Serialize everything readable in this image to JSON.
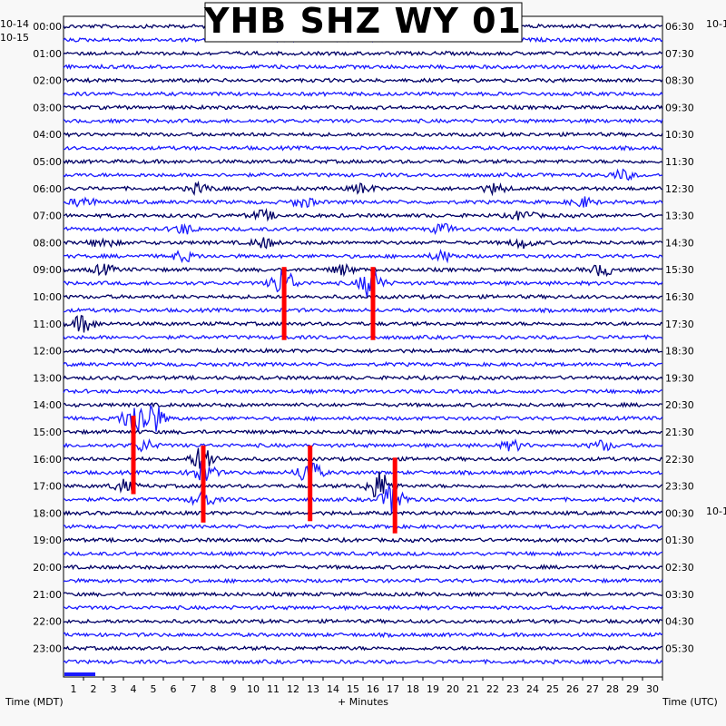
{
  "chart_data": {
    "type": "helicorder",
    "title": "YHB SHZ WY 01",
    "date_left_top": "10-14",
    "date_left_start": "10-15",
    "date_right_top": "10-1",
    "date_right_mid": "10-1",
    "xlabel": "+ Minutes",
    "left_axis_title": "Time (MDT)",
    "right_axis_title": "Time (UTC)",
    "xlim": [
      0,
      30
    ],
    "x_ticks": [
      1,
      2,
      3,
      4,
      5,
      6,
      7,
      8,
      9,
      10,
      11,
      12,
      13,
      14,
      15,
      16,
      17,
      18,
      19,
      20,
      21,
      22,
      23,
      24,
      25,
      26,
      27,
      28,
      29,
      30
    ],
    "left_hour_labels": [
      "00:00",
      "01:00",
      "02:00",
      "03:00",
      "04:00",
      "05:00",
      "06:00",
      "07:00",
      "08:00",
      "09:00",
      "10:00",
      "11:00",
      "12:00",
      "13:00",
      "14:00",
      "15:00",
      "16:00",
      "17:00",
      "18:00",
      "19:00",
      "20:00",
      "21:00",
      "22:00",
      "23:00"
    ],
    "right_hour_labels": [
      "06:30",
      "07:30",
      "08:30",
      "09:30",
      "10:30",
      "11:30",
      "12:30",
      "13:30",
      "14:30",
      "15:30",
      "16:30",
      "17:30",
      "18:30",
      "19:30",
      "20:30",
      "21:30",
      "22:30",
      "23:30",
      "00:30",
      "01:30",
      "02:30",
      "03:30",
      "04:30",
      "05:30"
    ],
    "trace_rows": 48,
    "trace_colors": [
      "#000066",
      "#1a1aff"
    ],
    "pick_color": "#ff0000",
    "blobs": [
      {
        "row": 12,
        "minute": 6.8,
        "amp": 5
      },
      {
        "row": 12,
        "minute": 15.0,
        "amp": 5
      },
      {
        "row": 12,
        "minute": 21.6,
        "amp": 5
      },
      {
        "row": 13,
        "minute": 1.0,
        "amp": 5
      },
      {
        "row": 13,
        "minute": 12.0,
        "amp": 5
      },
      {
        "row": 13,
        "minute": 26.0,
        "amp": 5
      },
      {
        "row": 11,
        "minute": 28.0,
        "amp": 5
      },
      {
        "row": 14,
        "minute": 10.0,
        "amp": 5
      },
      {
        "row": 14,
        "minute": 23.0,
        "amp": 5
      },
      {
        "row": 15,
        "minute": 6.0,
        "amp": 5
      },
      {
        "row": 15,
        "minute": 19.0,
        "amp": 5
      },
      {
        "row": 16,
        "minute": 2.0,
        "amp": 5
      },
      {
        "row": 16,
        "minute": 10.0,
        "amp": 5
      },
      {
        "row": 16,
        "minute": 23.0,
        "amp": 5
      },
      {
        "row": 17,
        "minute": 6.0,
        "amp": 5
      },
      {
        "row": 17,
        "minute": 19.0,
        "amp": 5
      },
      {
        "row": 18,
        "minute": 2.0,
        "amp": 5
      },
      {
        "row": 18,
        "minute": 14.0,
        "amp": 5
      },
      {
        "row": 18,
        "minute": 27.0,
        "amp": 6
      },
      {
        "row": 19,
        "minute": 11.0,
        "amp": 16
      },
      {
        "row": 19,
        "minute": 15.4,
        "amp": 16
      },
      {
        "row": 22,
        "minute": 1.0,
        "amp": 9
      },
      {
        "row": 29,
        "minute": 3.5,
        "amp": 16
      },
      {
        "row": 29,
        "minute": 4.4,
        "amp": 18
      },
      {
        "row": 31,
        "minute": 4.0,
        "amp": 6
      },
      {
        "row": 31,
        "minute": 22.5,
        "amp": 5
      },
      {
        "row": 31,
        "minute": 27.0,
        "amp": 5
      },
      {
        "row": 32,
        "minute": 7.0,
        "amp": 14
      },
      {
        "row": 33,
        "minute": 12.3,
        "amp": 14
      },
      {
        "row": 33,
        "minute": 7.0,
        "amp": 12
      },
      {
        "row": 34,
        "minute": 15.8,
        "amp": 16
      },
      {
        "row": 34,
        "minute": 3.0,
        "amp": 6
      },
      {
        "row": 35,
        "minute": 16.5,
        "amp": 16
      },
      {
        "row": 35,
        "minute": 7.0,
        "amp": 8
      }
    ],
    "picks": [
      {
        "minute": 11.05,
        "row_start": 17.8,
        "row_end": 23.2
      },
      {
        "minute": 15.5,
        "row_start": 17.8,
        "row_end": 23.2
      },
      {
        "minute": 3.5,
        "row_start": 28.8,
        "row_end": 34.6
      },
      {
        "minute": 7.0,
        "row_start": 31.0,
        "row_end": 36.7
      },
      {
        "minute": 12.35,
        "row_start": 31.0,
        "row_end": 36.6
      },
      {
        "minute": 16.6,
        "row_start": 31.9,
        "row_end": 37.5
      }
    ]
  }
}
